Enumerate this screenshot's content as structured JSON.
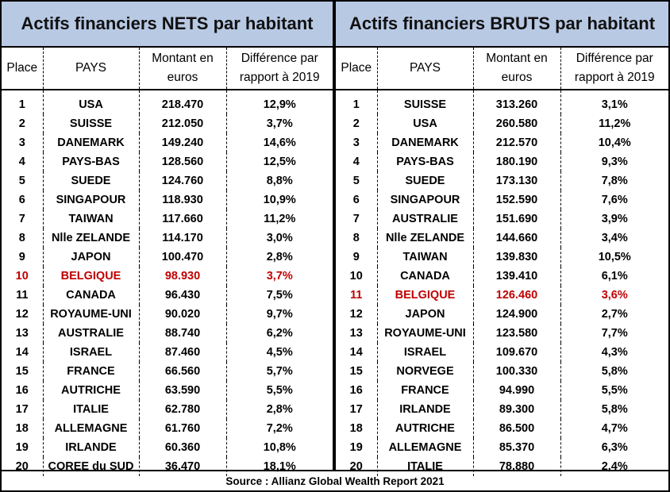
{
  "left": {
    "title": "Actifs financiers NETS par habitant",
    "headers": {
      "place": "Place",
      "pays": "PAYS",
      "montant": "Montant en euros",
      "diff": "Différence par rapport à 2019"
    },
    "highlight_place": "10",
    "rows": [
      [
        "1",
        "USA",
        "218.470",
        "12,9%"
      ],
      [
        "2",
        "SUISSE",
        "212.050",
        "3,7%"
      ],
      [
        "3",
        "DANEMARK",
        "149.240",
        "14,6%"
      ],
      [
        "4",
        "PAYS-BAS",
        "128.560",
        "12,5%"
      ],
      [
        "5",
        "SUEDE",
        "124.760",
        "8,8%"
      ],
      [
        "6",
        "SINGAPOUR",
        "118.930",
        "10,9%"
      ],
      [
        "7",
        "TAIWAN",
        "117.660",
        "11,2%"
      ],
      [
        "8",
        "Nlle ZELANDE",
        "114.170",
        "3,0%"
      ],
      [
        "9",
        "JAPON",
        "100.470",
        "2,8%"
      ],
      [
        "10",
        "BELGIQUE",
        "98.930",
        "3,7%"
      ],
      [
        "11",
        "CANADA",
        "96.430",
        "7,5%"
      ],
      [
        "12",
        "ROYAUME-UNI",
        "90.020",
        "9,7%"
      ],
      [
        "13",
        "AUSTRALIE",
        "88.740",
        "6,2%"
      ],
      [
        "14",
        "ISRAEL",
        "87.460",
        "4,5%"
      ],
      [
        "15",
        "FRANCE",
        "66.560",
        "5,7%"
      ],
      [
        "16",
        "AUTRICHE",
        "63.590",
        "5,5%"
      ],
      [
        "17",
        "ITALIE",
        "62.780",
        "2,8%"
      ],
      [
        "18",
        "ALLEMAGNE",
        "61.760",
        "7,2%"
      ],
      [
        "19",
        "IRLANDE",
        "60.360",
        "10,8%"
      ],
      [
        "20",
        "COREE du SUD",
        "36.470",
        "18,1%"
      ]
    ]
  },
  "right": {
    "title": "Actifs financiers BRUTS par habitant",
    "headers": {
      "place": "Place",
      "pays": "PAYS",
      "montant": "Montant en euros",
      "diff": "Différence par rapport à 2019"
    },
    "highlight_place": "11",
    "rows": [
      [
        "1",
        "SUISSE",
        "313.260",
        "3,1%"
      ],
      [
        "2",
        "USA",
        "260.580",
        "11,2%"
      ],
      [
        "3",
        "DANEMARK",
        "212.570",
        "10,4%"
      ],
      [
        "4",
        "PAYS-BAS",
        "180.190",
        "9,3%"
      ],
      [
        "5",
        "SUEDE",
        "173.130",
        "7,8%"
      ],
      [
        "6",
        "SINGAPOUR",
        "152.590",
        "7,6%"
      ],
      [
        "7",
        "AUSTRALIE",
        "151.690",
        "3,9%"
      ],
      [
        "8",
        "Nlle ZELANDE",
        "144.660",
        "3,4%"
      ],
      [
        "9",
        "TAIWAN",
        "139.830",
        "10,5%"
      ],
      [
        "10",
        "CANADA",
        "139.410",
        "6,1%"
      ],
      [
        "11",
        "BELGIQUE",
        "126.460",
        "3,6%"
      ],
      [
        "12",
        "JAPON",
        "124.900",
        "2,7%"
      ],
      [
        "13",
        "ROYAUME-UNI",
        "123.580",
        "7,7%"
      ],
      [
        "14",
        "ISRAEL",
        "109.670",
        "4,3%"
      ],
      [
        "15",
        "NORVEGE",
        "100.330",
        "5,8%"
      ],
      [
        "16",
        "FRANCE",
        "94.990",
        "5,5%"
      ],
      [
        "17",
        "IRLANDE",
        "89.300",
        "5,8%"
      ],
      [
        "18",
        "AUTRICHE",
        "86.500",
        "4,7%"
      ],
      [
        "19",
        "ALLEMAGNE",
        "85.370",
        "6,3%"
      ],
      [
        "20",
        "ITALIE",
        "78.880",
        "2,4%"
      ]
    ]
  },
  "source": "Source : Allianz Global Wealth Report 2021",
  "colors": {
    "title_bg": "#b8c9e4",
    "highlight": "#c00000"
  }
}
